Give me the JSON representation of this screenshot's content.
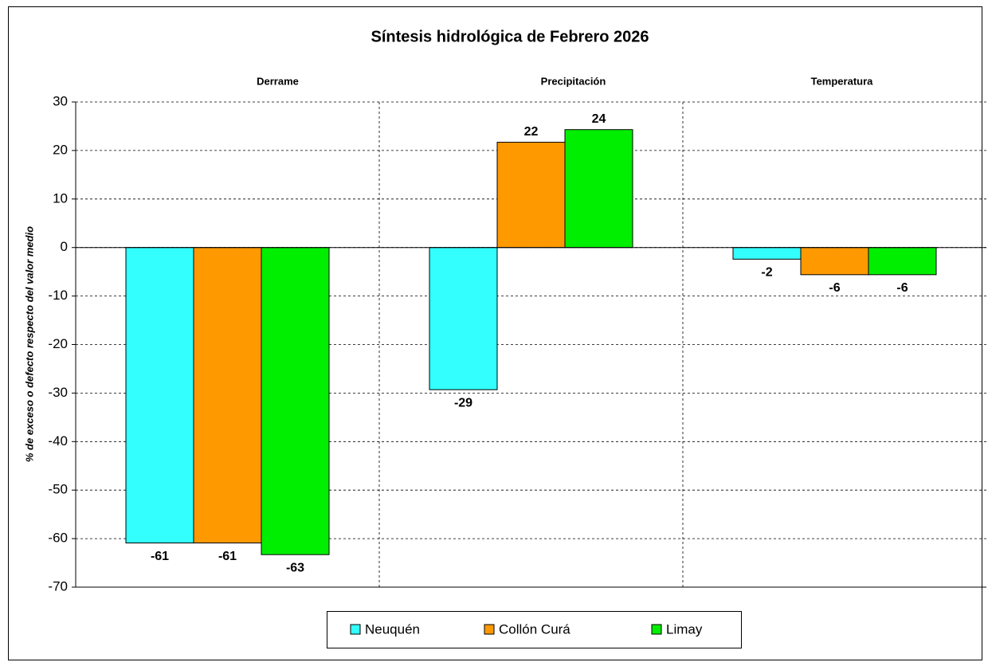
{
  "chart_data": {
    "type": "bar",
    "title": "Síntesis hidrológica de Febrero 2026",
    "y_label": "% de exceso o defecto respecto del valor medio",
    "categories": [
      "Derrame",
      "Precipitación",
      "Temperatura"
    ],
    "series": [
      {
        "name": "Neuquén",
        "color": "#33ffff",
        "label_color": "#000000",
        "values": [
          -60.9,
          -29.3,
          -2.4
        ],
        "value_labels": [
          "-61",
          "-29",
          "-2"
        ]
      },
      {
        "name": "Collón Curá",
        "color": "#ff9900",
        "label_color": "#1e4d1e",
        "values": [
          -60.9,
          21.7,
          -5.6
        ],
        "value_labels": [
          "-61",
          "22",
          "-6"
        ]
      },
      {
        "name": "Limay",
        "color": "#00ee00",
        "label_color": "#000000",
        "values": [
          -63.3,
          24.3,
          -5.6
        ],
        "value_labels": [
          "-63",
          "24",
          "-6"
        ]
      }
    ],
    "ylim": [
      -70,
      30
    ],
    "yticks": [
      -70,
      -60,
      -50,
      -40,
      -30,
      -20,
      -10,
      0,
      10,
      20,
      30
    ],
    "grid": true,
    "legend": "bottom"
  }
}
